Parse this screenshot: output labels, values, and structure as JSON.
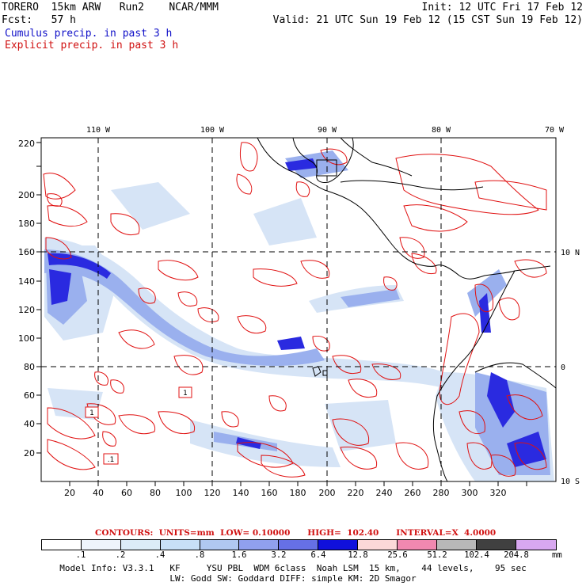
{
  "header": {
    "line1_left": "TORERO  15km ARW   Run2    NCAR/MMM",
    "line1_right": "Init: 12 UTC Fri 17 Feb 12",
    "line2_left": "Fcst:   57 h",
    "line2_right": "Valid: 21 UTC Sun 19 Feb 12 (15 CST Sun 19 Feb 12)",
    "field_cumulus": "Cumulus precip. in past 3 h",
    "field_explicit": "Explicit precip. in past 3 h"
  },
  "map": {
    "lon_labels": [
      "110 W",
      "100 W",
      "90 W",
      "80 W",
      "70 W"
    ],
    "lat_labels": [
      "10 N",
      "0",
      "10 S"
    ],
    "x_ticks": [
      "20",
      "40",
      "60",
      "80",
      "100",
      "120",
      "140",
      "160",
      "180",
      "200",
      "220",
      "240",
      "260",
      "280",
      "300",
      "320"
    ],
    "y_ticks": [
      "20",
      "40",
      "60",
      "80",
      "100",
      "120",
      "140",
      "160",
      "180",
      "200",
      "220"
    ],
    "box_labels": [
      "1",
      "1",
      ".1"
    ],
    "colors": {
      "coast": "#000000",
      "contour": "#e01010",
      "cumulus_light": "#c8dcf4",
      "cumulus_mid": "#8fa8f0",
      "cumulus_dark": "#3030e0"
    }
  },
  "contours_note": "CONTOURS:  UNITS=mm  LOW= 0.10000      HIGH=  102.40      INTERVAL=X  4.0000",
  "colorbar": {
    "labels": [
      ".1",
      ".2",
      ".4",
      ".8",
      "1.6",
      "3.2",
      "6.4",
      "12.8",
      "25.6",
      "51.2",
      "102.4",
      "204.8"
    ],
    "colors": [
      "#ffffff",
      "#eef4fc",
      "#dcecf8",
      "#c8e0f6",
      "#b0c8f0",
      "#90a0ee",
      "#6670e6",
      "#1010dc",
      "#fcd8d8",
      "#f088b0",
      "#b8b8b8",
      "#404040",
      "#d8a8f0"
    ],
    "units": "mm"
  },
  "footer": {
    "line1": "Model Info: V3.3.1   KF     YSU PBL  WDM 6class  Noah LSM  15 km,    44 levels,    95 sec",
    "line2": "LW: Godd SW: Goddard DIFF: simple KM: 2D Smagor"
  }
}
